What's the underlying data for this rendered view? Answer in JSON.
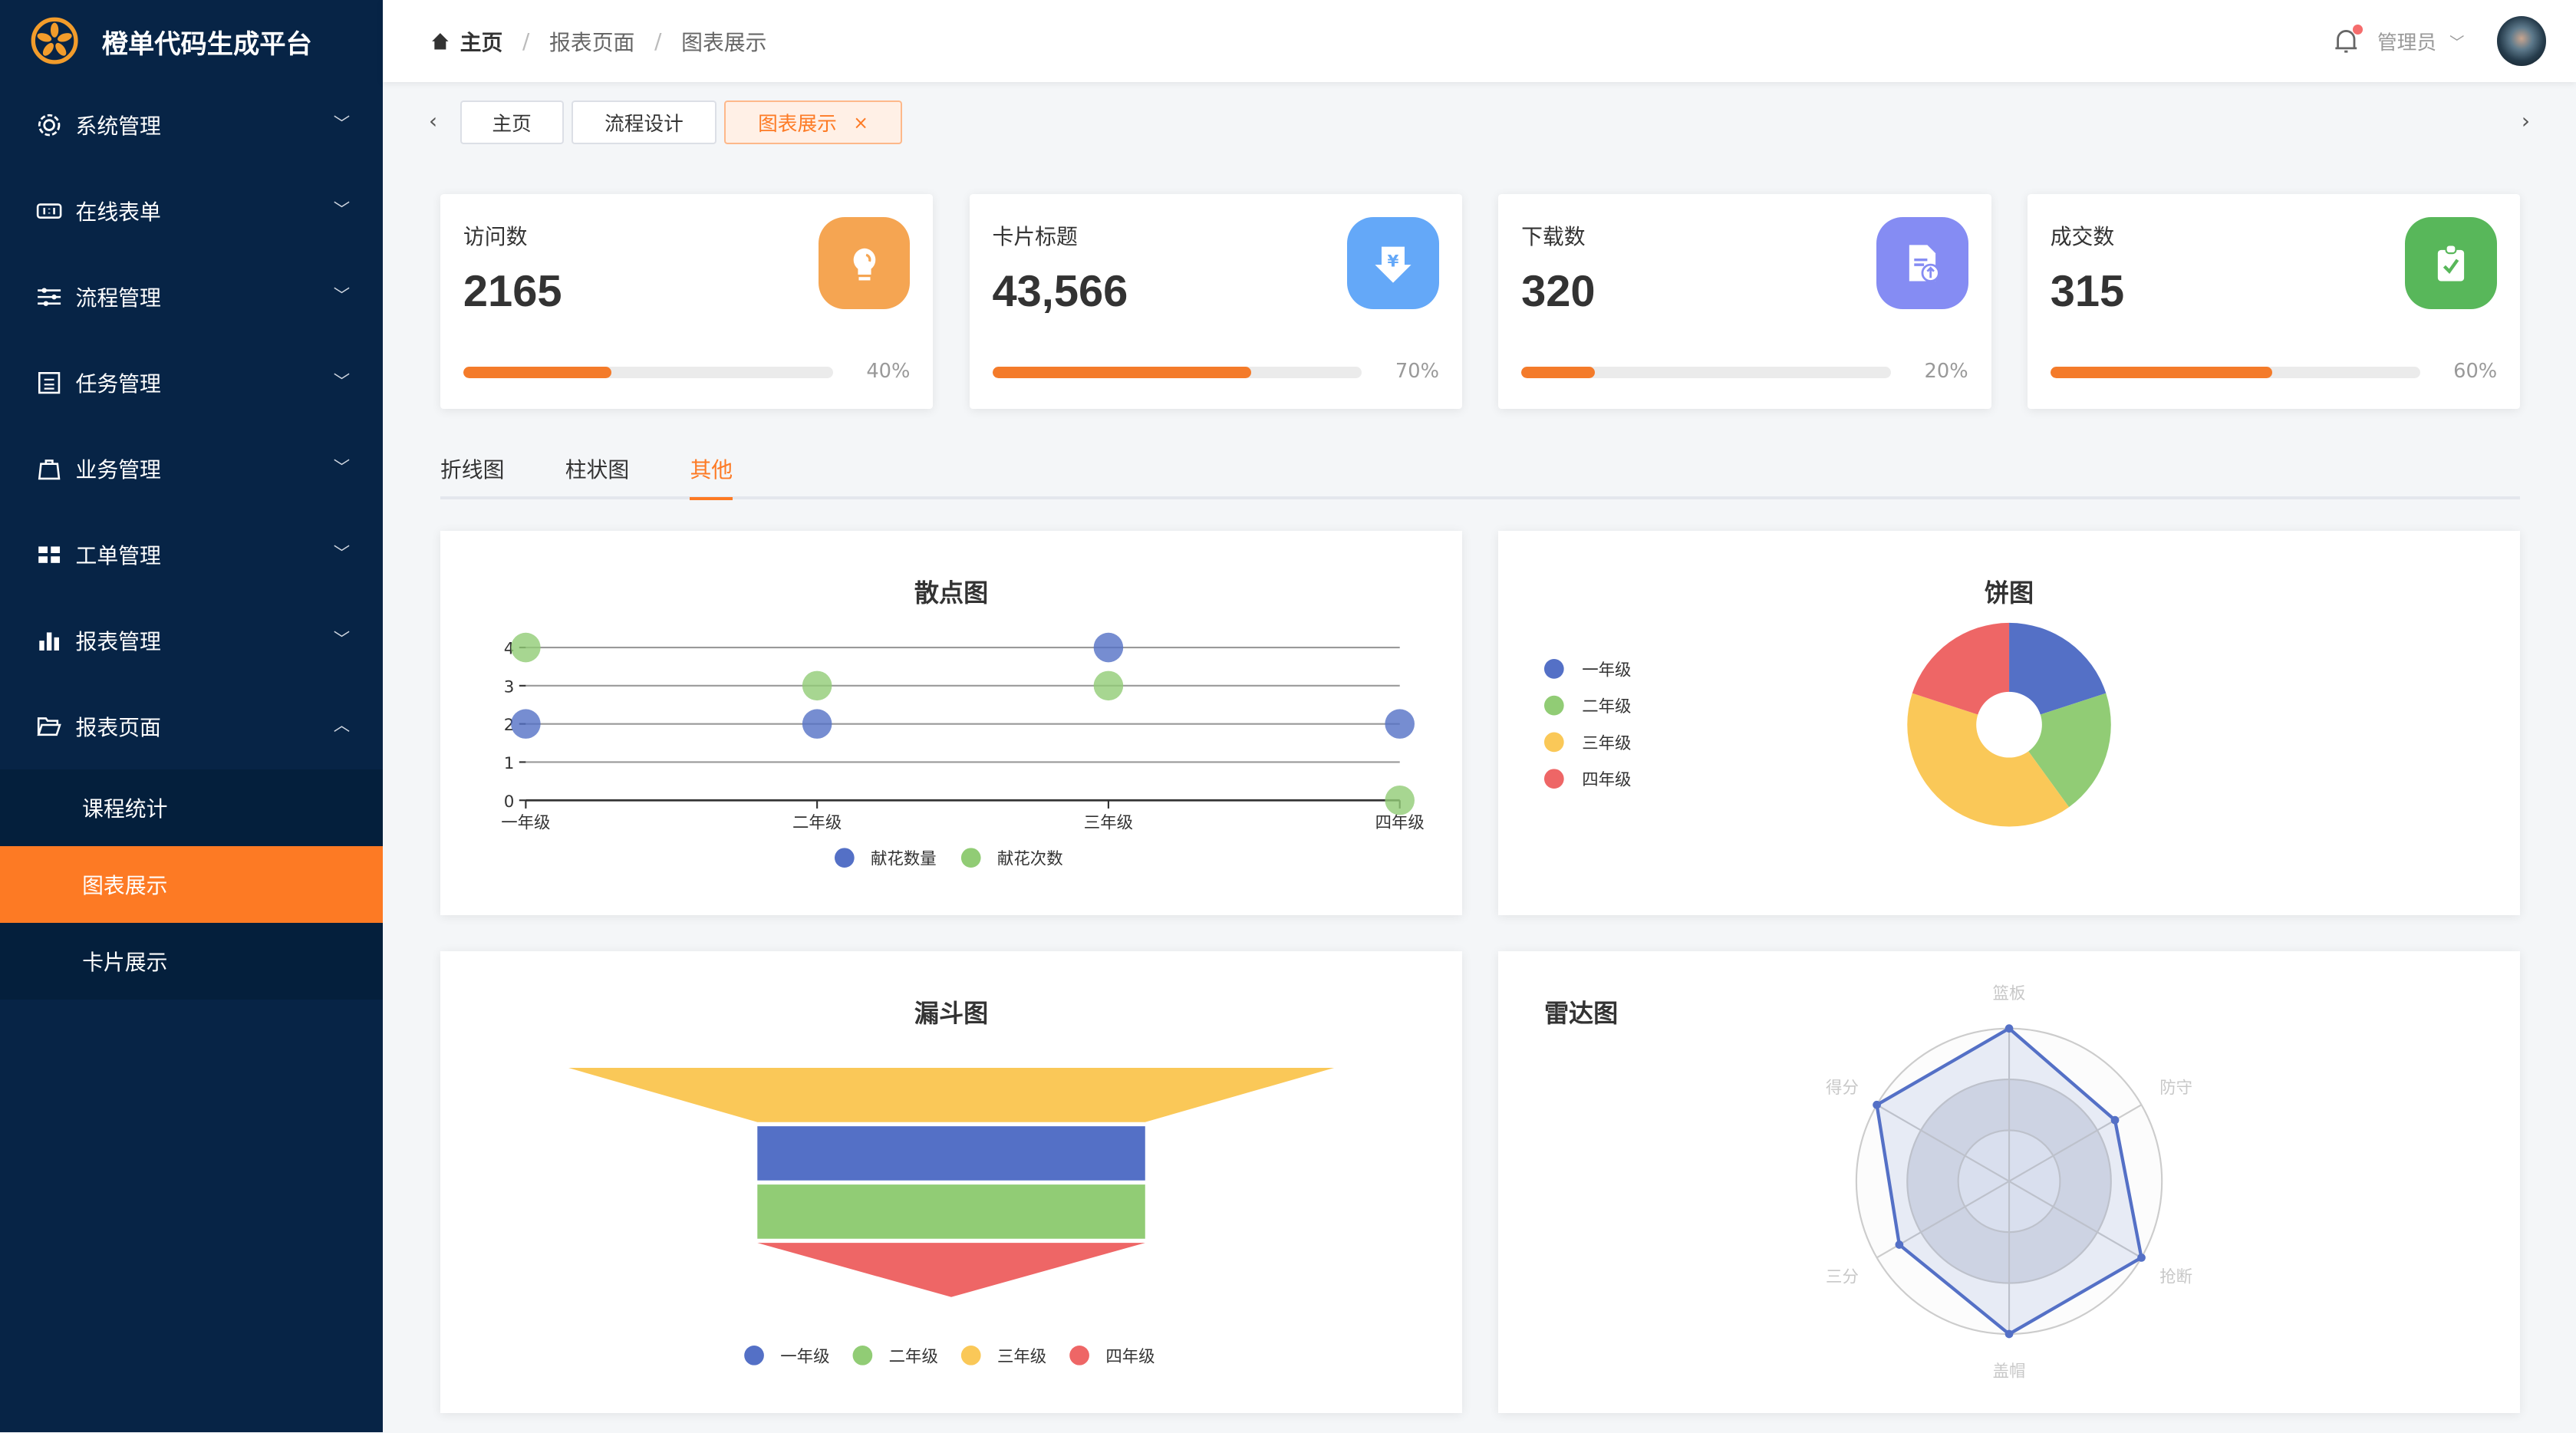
{
  "app": {
    "title": "橙单代码生成平台"
  },
  "sidebar": {
    "items": [
      {
        "label": "系统管理",
        "icon": "gear-icon"
      },
      {
        "label": "在线表单",
        "icon": "form-icon"
      },
      {
        "label": "流程管理",
        "icon": "sliders-icon"
      },
      {
        "label": "任务管理",
        "icon": "task-list-icon"
      },
      {
        "label": "业务管理",
        "icon": "bag-icon"
      },
      {
        "label": "工单管理",
        "icon": "grid-icon"
      },
      {
        "label": "报表管理",
        "icon": "bar-chart-icon"
      },
      {
        "label": "报表页面",
        "icon": "folder-icon",
        "expanded": true
      }
    ],
    "subitems": [
      {
        "label": "课程统计"
      },
      {
        "label": "图表展示",
        "active": true
      },
      {
        "label": "卡片展示"
      }
    ]
  },
  "header": {
    "breadcrumb": [
      "主页",
      "报表页面",
      "图表展示"
    ],
    "user": "管理员",
    "has_notification": true
  },
  "tabs": [
    {
      "label": "主页"
    },
    {
      "label": "流程设计"
    },
    {
      "label": "图表展示",
      "active": true,
      "close": "×"
    }
  ],
  "cards": [
    {
      "title": "访问数",
      "value": "2165",
      "percent": 40,
      "percent_label": "40%",
      "icon": "lightbulb-icon",
      "color": "#f5a552"
    },
    {
      "title": "卡片标题",
      "value": "43,566",
      "percent": 70,
      "percent_label": "70%",
      "icon": "yuan-download-icon",
      "color": "#64a8f8"
    },
    {
      "title": "下载数",
      "value": "320",
      "percent": 20,
      "percent_label": "20%",
      "icon": "file-upload-icon",
      "color": "#858cf3"
    },
    {
      "title": "成交数",
      "value": "315",
      "percent": 60,
      "percent_label": "60%",
      "icon": "clipboard-check-icon",
      "color": "#58b75a"
    }
  ],
  "chart_tabs": [
    {
      "label": "折线图"
    },
    {
      "label": "柱状图"
    },
    {
      "label": "其他",
      "active": true
    }
  ],
  "colors": {
    "accent": "#fd7a24",
    "blue": "#5470c6",
    "green": "#91cc75",
    "yellow": "#fac858",
    "red": "#ee6666"
  },
  "chart_data": [
    {
      "type": "scatter",
      "title": "散点图",
      "categories": [
        "一年级",
        "二年级",
        "三年级",
        "四年级"
      ],
      "ylim": [
        0,
        4
      ],
      "yticks": [
        "0",
        "1",
        "2",
        "3",
        "4"
      ],
      "grid": true,
      "legend": "bottom",
      "series": [
        {
          "name": "献花数量",
          "values": [
            2,
            2,
            4,
            2
          ],
          "color": "#5470c6"
        },
        {
          "name": "献花次数",
          "values": [
            4,
            3,
            3,
            0
          ],
          "color": "#91cc75"
        }
      ]
    },
    {
      "type": "pie",
      "title": "饼图",
      "donut": true,
      "legend": "left",
      "categories": [
        "一年级",
        "二年级",
        "三年级",
        "四年级"
      ],
      "values": [
        20,
        20,
        40,
        20
      ],
      "colors": [
        "#5470c6",
        "#91cc75",
        "#fac858",
        "#ee6666"
      ]
    },
    {
      "type": "funnel",
      "title": "漏斗图",
      "legend": "bottom",
      "categories": [
        "一年级",
        "二年级",
        "三年级",
        "四年级"
      ],
      "values": [
        20,
        20,
        40,
        20
      ],
      "colors": [
        "#5470c6",
        "#91cc75",
        "#fac858",
        "#ee6666"
      ]
    },
    {
      "type": "radar",
      "title": "雷达图",
      "max": 100,
      "indicators": [
        "篮板",
        "防守",
        "抢断",
        "盖帽",
        "三分",
        "得分"
      ],
      "values": [
        100,
        80,
        100,
        100,
        83,
        100
      ],
      "color": "#5470c6"
    }
  ]
}
